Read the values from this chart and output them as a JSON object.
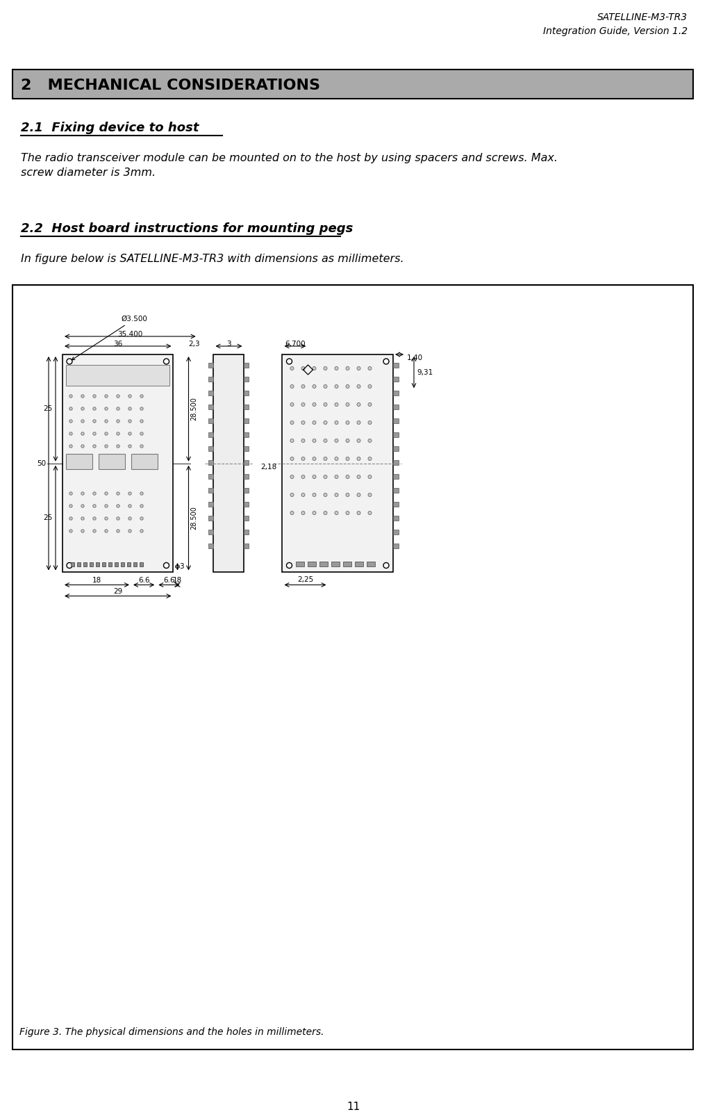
{
  "header_line1": "SATELLINE-M3-TR3",
  "header_line2": "Integration Guide, Version 1.2",
  "section_title": "2   MECHANICAL CONSIDERATIONS",
  "section_bg_color": "#aaaaaa",
  "section_text_color": "#000000",
  "subsection1_title": "2.1  Fixing device to host",
  "subsection1_body": "The radio transceiver module can be mounted on to the host by using spacers and screws. Max.\nscrew diameter is 3mm.",
  "subsection2_title": "2.2  Host board instructions for mounting pegs",
  "subsection2_body": "In figure below is SATELLINE-M3-TR3 with dimensions as millimeters.",
  "figure_caption": "Figure 3. The physical dimensions and the holes in millimeters.",
  "page_number": "11",
  "bg_color": "#ffffff",
  "figure_box_color": "#ffffff",
  "figure_border_color": "#000000"
}
